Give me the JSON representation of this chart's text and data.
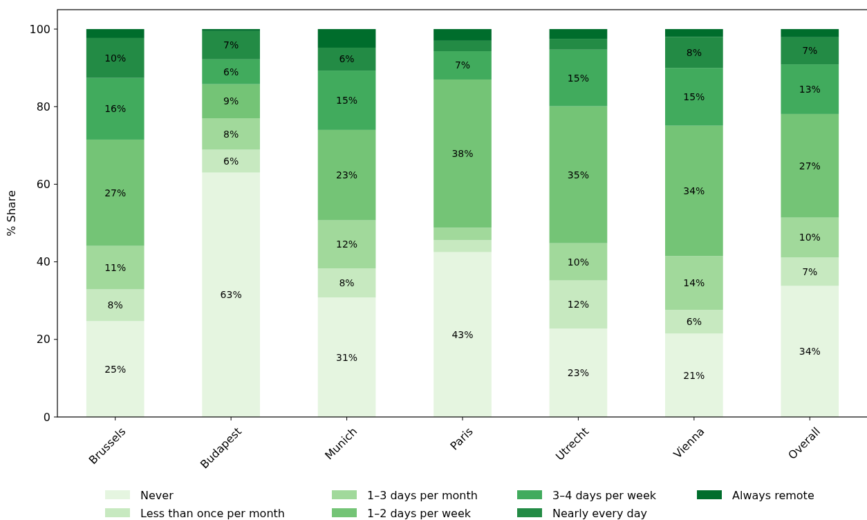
{
  "chart_data": {
    "type": "bar",
    "stacked": true,
    "ylabel": "% Share",
    "categories": [
      "Brussels",
      "Budapest",
      "Munich",
      "Paris",
      "Utrecht",
      "Vienna",
      "Overall"
    ],
    "ylim": [
      0,
      105
    ],
    "yticks": [
      0,
      20,
      40,
      60,
      80,
      100
    ],
    "grid": false,
    "legend": "bottom",
    "series": [
      {
        "name": "Never",
        "color": "#e5f5e0",
        "values": [
          24.7,
          63.0,
          30.8,
          42.5,
          22.8,
          21.5,
          33.8
        ],
        "value_labels": [
          "25%",
          "63%",
          "31%",
          "43%",
          "23%",
          "21%",
          "34%"
        ]
      },
      {
        "name": "Less than once per month",
        "color": "#c7e9c0",
        "values": [
          8.2,
          5.9,
          7.5,
          3.1,
          12.4,
          6.1,
          7.3
        ],
        "value_labels": [
          "8%",
          "6%",
          "8%",
          null,
          "12%",
          "6%",
          "7%"
        ]
      },
      {
        "name": "1–3 days per month",
        "color": "#a1d99b",
        "values": [
          11.2,
          8.1,
          12.4,
          3.2,
          9.6,
          13.9,
          10.3
        ],
        "value_labels": [
          "11%",
          "8%",
          "12%",
          null,
          "10%",
          "14%",
          "10%"
        ]
      },
      {
        "name": "1–2 days per week",
        "color": "#74c476",
        "values": [
          27.4,
          8.8,
          23.3,
          38.2,
          35.3,
          33.6,
          26.7
        ],
        "value_labels": [
          "27%",
          "9%",
          "23%",
          "38%",
          "35%",
          "34%",
          "27%"
        ]
      },
      {
        "name": "3–4 days per week",
        "color": "#41ab5d",
        "values": [
          15.9,
          6.4,
          15.3,
          7.3,
          14.6,
          14.9,
          12.8
        ],
        "value_labels": [
          "16%",
          "6%",
          "15%",
          "7%",
          "15%",
          "15%",
          "13%"
        ]
      },
      {
        "name": "Nearly every day",
        "color": "#238b45",
        "values": [
          10.3,
          7.3,
          5.9,
          2.7,
          2.8,
          8.0,
          7.0
        ],
        "value_labels": [
          "10%",
          "7%",
          "6%",
          null,
          null,
          "8%",
          "7%"
        ]
      },
      {
        "name": "Always remote",
        "color": "#006d2c",
        "values": [
          2.3,
          0.5,
          4.8,
          3.0,
          2.5,
          2.0,
          2.1
        ],
        "value_labels": [
          null,
          null,
          null,
          null,
          null,
          null,
          null
        ]
      }
    ]
  }
}
